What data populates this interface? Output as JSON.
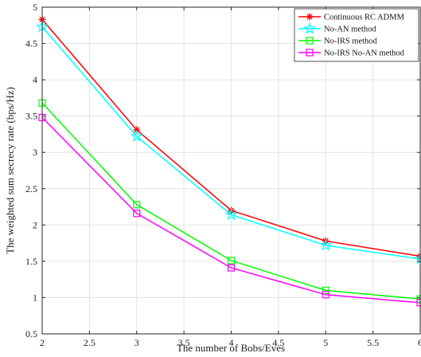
{
  "chart_data": {
    "type": "line",
    "title": "",
    "xlabel": "The number of Bobs/Eves",
    "ylabel": "The weighted sum secrecy rate (bps/Hz)",
    "x": [
      2,
      3,
      4,
      5,
      6
    ],
    "xlim": [
      2,
      6
    ],
    "ylim": [
      0.5,
      5
    ],
    "xticks": [
      "2",
      "2.5",
      "3",
      "3.5",
      "4",
      "4.5",
      "5",
      "5.5",
      "6"
    ],
    "yticks": [
      "0.5",
      "1",
      "1.5",
      "2",
      "2.5",
      "3",
      "3.5",
      "4",
      "4.5",
      "5"
    ],
    "grid": true,
    "legend_position": "top-right",
    "series": [
      {
        "name": "Continuous RC ADMM",
        "color": "#ff0000",
        "marker": "asterisk",
        "values": [
          4.83,
          3.31,
          2.2,
          1.78,
          1.57
        ]
      },
      {
        "name": "No-AN method",
        "color": "#00ffff",
        "marker": "star",
        "values": [
          4.73,
          3.22,
          2.14,
          1.72,
          1.53
        ]
      },
      {
        "name": "No-IRS method",
        "color": "#00ff00",
        "marker": "square",
        "values": [
          3.68,
          2.28,
          1.51,
          1.1,
          0.98
        ]
      },
      {
        "name": "No-IRS No-AN method",
        "color": "#ff00ff",
        "marker": "square",
        "values": [
          3.48,
          2.16,
          1.41,
          1.04,
          0.93
        ]
      }
    ]
  }
}
